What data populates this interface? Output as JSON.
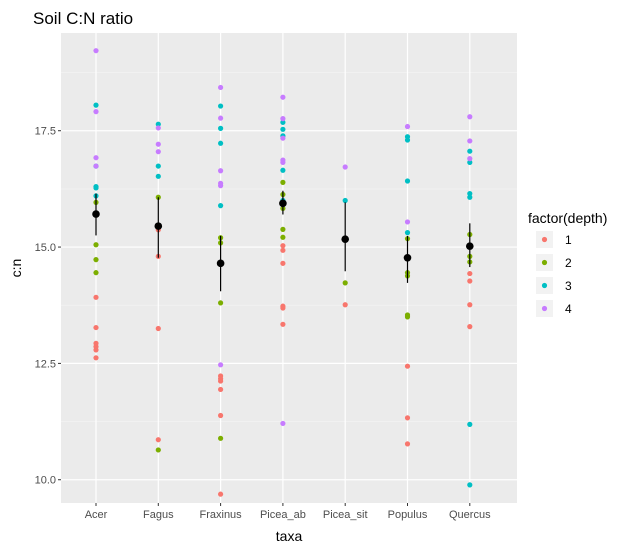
{
  "chart_data": {
    "type": "scatter",
    "title": "Soil C:N ratio",
    "xlabel": "taxa",
    "ylabel": "c:n",
    "categories": [
      "Acer",
      "Fagus",
      "Fraxinus",
      "Picea_ab",
      "Picea_sit",
      "Populus",
      "Quercus"
    ],
    "ylim": [
      9.5,
      19.6
    ],
    "yticks": [
      10.0,
      12.5,
      15.0,
      17.5
    ],
    "ytick_labels": [
      "10.0",
      "12.5",
      "15.0",
      "17.5"
    ],
    "grid": true,
    "legend": {
      "title": "factor(depth)",
      "position": "right",
      "entries": [
        {
          "label": "1",
          "color": "#F8766D"
        },
        {
          "label": "2",
          "color": "#7CAE00"
        },
        {
          "label": "3",
          "color": "#00BFC4"
        },
        {
          "label": "4",
          "color": "#C77CFF"
        }
      ]
    },
    "series": [
      {
        "depth": "1",
        "color": "#F8766D",
        "points": [
          [
            "Acer",
            13.92
          ],
          [
            "Acer",
            13.27
          ],
          [
            "Acer",
            12.93
          ],
          [
            "Acer",
            12.86
          ],
          [
            "Acer",
            12.79
          ],
          [
            "Acer",
            12.62
          ],
          [
            "Fagus",
            15.37
          ],
          [
            "Fagus",
            14.8
          ],
          [
            "Fagus",
            13.25
          ],
          [
            "Fagus",
            10.86
          ],
          [
            "Fraxinus",
            12.23
          ],
          [
            "Fraxinus",
            12.17
          ],
          [
            "Fraxinus",
            12.12
          ],
          [
            "Fraxinus",
            11.94
          ],
          [
            "Fraxinus",
            11.38
          ],
          [
            "Fraxinus",
            9.69
          ],
          [
            "Picea_ab",
            15.03
          ],
          [
            "Picea_ab",
            14.93
          ],
          [
            "Picea_ab",
            14.65
          ],
          [
            "Picea_ab",
            13.73
          ],
          [
            "Picea_ab",
            13.69
          ],
          [
            "Picea_ab",
            13.34
          ],
          [
            "Picea_sit",
            13.76
          ],
          [
            "Populus",
            12.44
          ],
          [
            "Populus",
            11.33
          ],
          [
            "Populus",
            10.77
          ],
          [
            "Quercus",
            14.43
          ],
          [
            "Quercus",
            14.27
          ],
          [
            "Quercus",
            13.76
          ],
          [
            "Quercus",
            13.29
          ]
        ]
      },
      {
        "depth": "2",
        "color": "#7CAE00",
        "points": [
          [
            "Acer",
            15.96
          ],
          [
            "Acer",
            15.05
          ],
          [
            "Acer",
            14.73
          ],
          [
            "Acer",
            14.45
          ],
          [
            "Fagus",
            16.07
          ],
          [
            "Fagus",
            10.64
          ],
          [
            "Fraxinus",
            15.2
          ],
          [
            "Fraxinus",
            15.09
          ],
          [
            "Fraxinus",
            13.8
          ],
          [
            "Fraxinus",
            10.89
          ],
          [
            "Picea_ab",
            16.39
          ],
          [
            "Picea_ab",
            16.13
          ],
          [
            "Picea_ab",
            15.83
          ],
          [
            "Picea_ab",
            15.38
          ],
          [
            "Picea_ab",
            15.21
          ],
          [
            "Picea_sit",
            14.23
          ],
          [
            "Populus",
            15.18
          ],
          [
            "Populus",
            14.45
          ],
          [
            "Populus",
            14.38
          ],
          [
            "Populus",
            13.54
          ],
          [
            "Populus",
            13.5
          ],
          [
            "Quercus",
            15.27
          ],
          [
            "Quercus",
            14.8
          ],
          [
            "Quercus",
            14.68
          ]
        ]
      },
      {
        "depth": "3",
        "color": "#00BFC4",
        "points": [
          [
            "Acer",
            18.05
          ],
          [
            "Acer",
            16.74
          ],
          [
            "Acer",
            16.3
          ],
          [
            "Acer",
            16.27
          ],
          [
            "Acer",
            16.1
          ],
          [
            "Fagus",
            17.64
          ],
          [
            "Fagus",
            16.74
          ],
          [
            "Fagus",
            16.52
          ],
          [
            "Fraxinus",
            18.03
          ],
          [
            "Fraxinus",
            17.55
          ],
          [
            "Fraxinus",
            17.23
          ],
          [
            "Fraxinus",
            15.89
          ],
          [
            "Picea_ab",
            17.68
          ],
          [
            "Picea_ab",
            17.53
          ],
          [
            "Picea_ab",
            17.39
          ],
          [
            "Picea_ab",
            16.65
          ],
          [
            "Picea_ab",
            16.0
          ],
          [
            "Picea_sit",
            16.0
          ],
          [
            "Populus",
            17.37
          ],
          [
            "Populus",
            17.3
          ],
          [
            "Populus",
            16.42
          ],
          [
            "Populus",
            15.31
          ],
          [
            "Quercus",
            17.06
          ],
          [
            "Quercus",
            16.82
          ],
          [
            "Quercus",
            16.15
          ],
          [
            "Quercus",
            16.07
          ],
          [
            "Quercus",
            11.19
          ],
          [
            "Quercus",
            9.89
          ]
        ]
      },
      {
        "depth": "4",
        "color": "#C77CFF",
        "points": [
          [
            "Acer",
            19.22
          ],
          [
            "Acer",
            17.91
          ],
          [
            "Acer",
            16.92
          ],
          [
            "Acer",
            16.74
          ],
          [
            "Fagus",
            17.56
          ],
          [
            "Fagus",
            17.21
          ],
          [
            "Fagus",
            17.05
          ],
          [
            "Fraxinus",
            18.43
          ],
          [
            "Fraxinus",
            17.77
          ],
          [
            "Fraxinus",
            16.64
          ],
          [
            "Fraxinus",
            16.37
          ],
          [
            "Fraxinus",
            16.32
          ],
          [
            "Fraxinus",
            12.47
          ],
          [
            "Picea_ab",
            18.22
          ],
          [
            "Picea_ab",
            17.76
          ],
          [
            "Picea_ab",
            17.34
          ],
          [
            "Picea_ab",
            16.87
          ],
          [
            "Picea_ab",
            16.82
          ],
          [
            "Picea_ab",
            11.21
          ],
          [
            "Picea_sit",
            16.72
          ],
          [
            "Populus",
            17.59
          ],
          [
            "Populus",
            15.54
          ],
          [
            "Quercus",
            17.8
          ],
          [
            "Quercus",
            17.28
          ],
          [
            "Quercus",
            16.9
          ]
        ]
      }
    ],
    "summary": {
      "color": "#000000",
      "points": [
        {
          "x": "Acer",
          "mean": 15.71,
          "low": 15.25,
          "high": 16.15
        },
        {
          "x": "Fagus",
          "mean": 15.45,
          "low": 14.77,
          "high": 16.07
        },
        {
          "x": "Fraxinus",
          "mean": 14.65,
          "low": 14.05,
          "high": 15.24
        },
        {
          "x": "Picea_ab",
          "mean": 15.94,
          "low": 15.7,
          "high": 16.21
        },
        {
          "x": "Picea_sit",
          "mean": 15.17,
          "low": 14.48,
          "high": 15.96
        },
        {
          "x": "Populus",
          "mean": 14.77,
          "low": 14.23,
          "high": 15.24
        },
        {
          "x": "Quercus",
          "mean": 15.02,
          "low": 14.57,
          "high": 15.51
        }
      ]
    }
  }
}
